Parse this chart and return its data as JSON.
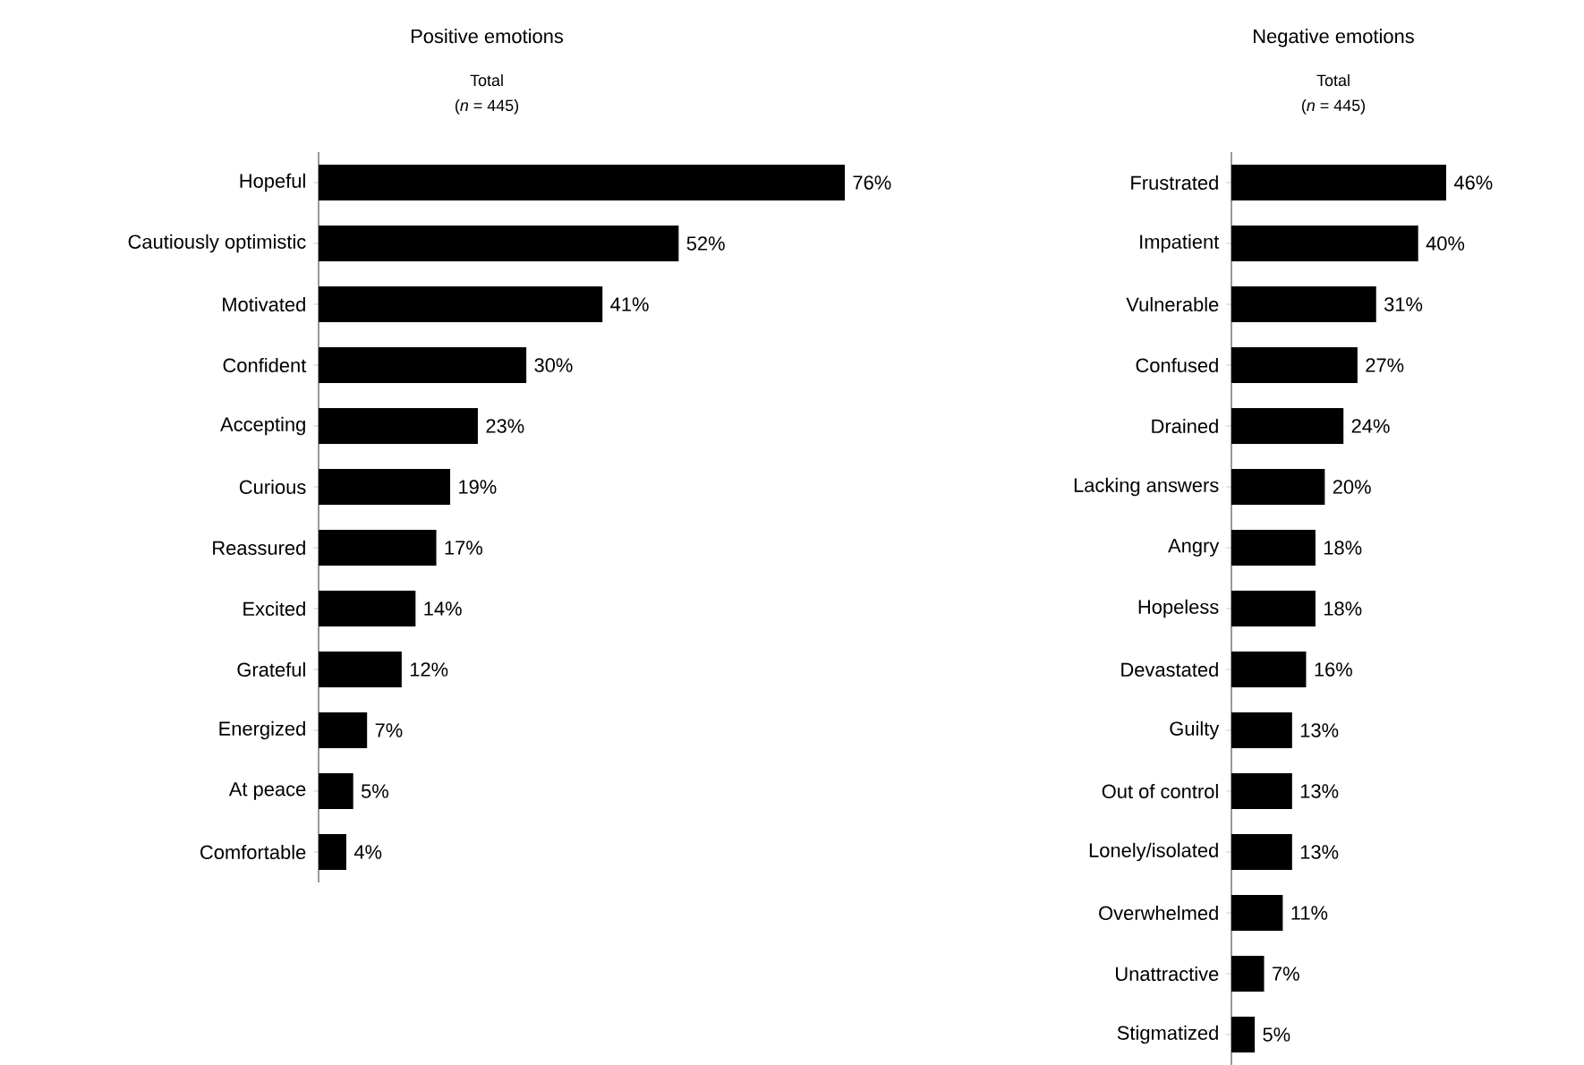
{
  "chart_data": [
    {
      "type": "bar",
      "orientation": "horizontal",
      "title": "Positive emotions",
      "subtitle": "Total",
      "annotations": [
        "(*n* = 445)"
      ],
      "categories": [
        "Hopeful",
        "Cautiously optimistic",
        "Motivated",
        "Confident",
        "Accepting",
        "Curious",
        "Reassured",
        "Excited",
        "Grateful",
        "Energized",
        "At peace",
        "Comfortable"
      ],
      "values": [
        76,
        52,
        41,
        30,
        23,
        19,
        17,
        14,
        12,
        7,
        5,
        4
      ],
      "value_labels": [
        "76%",
        "52%",
        "41%",
        "30%",
        "23%",
        "19%",
        "17%",
        "14%",
        "12%",
        "7%",
        "5%",
        "4%"
      ],
      "color": "#000000"
    },
    {
      "type": "bar",
      "orientation": "horizontal",
      "title": "Negative emotions",
      "subtitle": "Total",
      "annotations": [
        "(*n* = 445)"
      ],
      "categories": [
        "Frustrated",
        "Impatient",
        "Vulnerable",
        "Confused",
        "Drained",
        "Lacking answers",
        "Angry",
        "Hopeless",
        "Devastated",
        "Guilty",
        "Out of control",
        "Lonely/isolated",
        "Overwhelmed",
        "Unattractive",
        "Stigmatized"
      ],
      "values": [
        46,
        40,
        31,
        27,
        24,
        20,
        18,
        18,
        16,
        13,
        13,
        13,
        11,
        7,
        5
      ],
      "value_labels": [
        "46%",
        "40%",
        "31%",
        "27%",
        "24%",
        "20%",
        "18%",
        "18%",
        "16%",
        "13%",
        "13%",
        "13%",
        "11%",
        "7%",
        "5%"
      ],
      "color": "#000000"
    }
  ]
}
